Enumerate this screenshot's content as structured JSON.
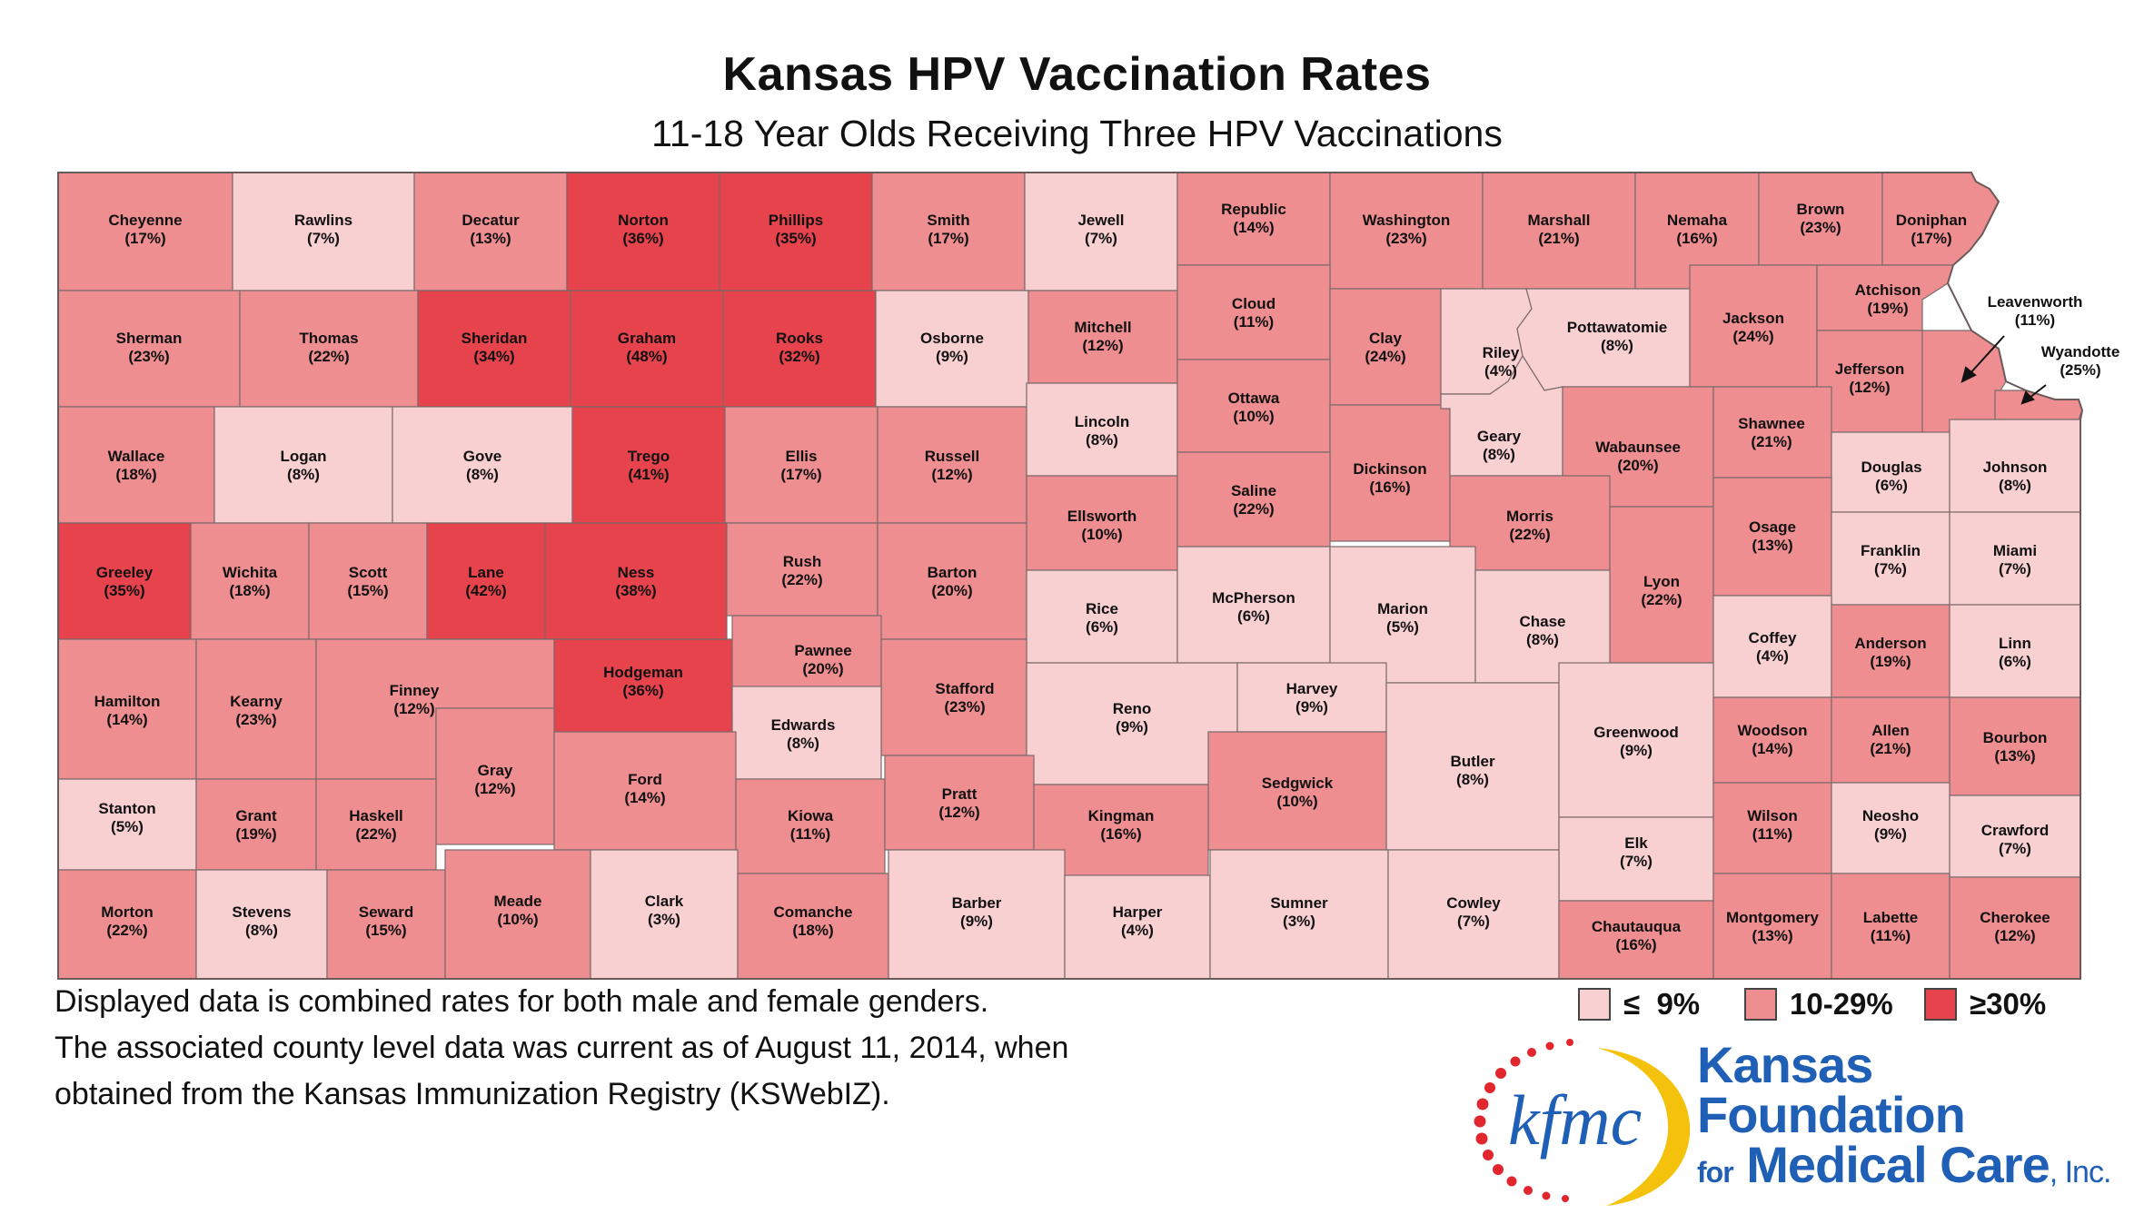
{
  "title": "Kansas HPV Vaccination Rates",
  "subtitle": "11-18 Year Olds Receiving Three HPV Vaccinations",
  "notes": [
    "Displayed data is combined rates for both male and female genders.",
    "The associated county level data was current as of August 11, 2014, when",
    "obtained from the Kansas Immunization Registry (KSWebIZ)."
  ],
  "legend": [
    {
      "label": "≤  9%",
      "color": "#f9d0d1"
    },
    {
      "label": "10-29%",
      "color": "#ef8e91"
    },
    {
      "label": "≥30%",
      "color": "#e6434c"
    }
  ],
  "logo": {
    "mark": "kfmc",
    "line1": "Kansas",
    "line2": "Foundation",
    "line3_for": "for",
    "line3_main": "Medical Care",
    "line3_inc": ", Inc."
  },
  "counties": [
    {
      "name": "Cheyenne",
      "rate": "(17%)"
    },
    {
      "name": "Rawlins",
      "rate": "(7%)"
    },
    {
      "name": "Decatur",
      "rate": "(13%)"
    },
    {
      "name": "Norton",
      "rate": "(36%)"
    },
    {
      "name": "Phillips",
      "rate": "(35%)"
    },
    {
      "name": "Smith",
      "rate": "(17%)"
    },
    {
      "name": "Jewell",
      "rate": "(7%)"
    },
    {
      "name": "Republic",
      "rate": "(14%)"
    },
    {
      "name": "Washington",
      "rate": "(23%)"
    },
    {
      "name": "Marshall",
      "rate": "(21%)"
    },
    {
      "name": "Nemaha",
      "rate": "(16%)"
    },
    {
      "name": "Brown",
      "rate": "(23%)"
    },
    {
      "name": "Doniphan",
      "rate": "(17%)"
    },
    {
      "name": "Sherman",
      "rate": "(23%)"
    },
    {
      "name": "Thomas",
      "rate": "(22%)"
    },
    {
      "name": "Sheridan",
      "rate": "(34%)"
    },
    {
      "name": "Graham",
      "rate": "(48%)"
    },
    {
      "name": "Rooks",
      "rate": "(32%)"
    },
    {
      "name": "Osborne",
      "rate": "(9%)"
    },
    {
      "name": "Mitchell",
      "rate": "(12%)"
    },
    {
      "name": "Cloud",
      "rate": "(11%)"
    },
    {
      "name": "Clay",
      "rate": "(24%)"
    },
    {
      "name": "Riley",
      "rate": "(4%)"
    },
    {
      "name": "Pottawatomie",
      "rate": "(8%)"
    },
    {
      "name": "Jackson",
      "rate": "(24%)"
    },
    {
      "name": "Atchison",
      "rate": "(19%)"
    },
    {
      "name": "Jefferson",
      "rate": "(12%)"
    },
    {
      "name": "Leavenworth",
      "rate": "(11%)"
    },
    {
      "name": "Wyandotte",
      "rate": "(25%)"
    },
    {
      "name": "Wallace",
      "rate": "(18%)"
    },
    {
      "name": "Logan",
      "rate": "(8%)"
    },
    {
      "name": "Gove",
      "rate": "(8%)"
    },
    {
      "name": "Trego",
      "rate": "(41%)"
    },
    {
      "name": "Ellis",
      "rate": "(17%)"
    },
    {
      "name": "Russell",
      "rate": "(12%)"
    },
    {
      "name": "Lincoln",
      "rate": "(8%)"
    },
    {
      "name": "Ottawa",
      "rate": "(10%)"
    },
    {
      "name": "Dickinson",
      "rate": "(16%)"
    },
    {
      "name": "Geary",
      "rate": "(8%)"
    },
    {
      "name": "Wabaunsee",
      "rate": "(20%)"
    },
    {
      "name": "Shawnee",
      "rate": "(21%)"
    },
    {
      "name": "Douglas",
      "rate": "(6%)"
    },
    {
      "name": "Johnson",
      "rate": "(8%)"
    },
    {
      "name": "Greeley",
      "rate": "(35%)"
    },
    {
      "name": "Wichita",
      "rate": "(18%)"
    },
    {
      "name": "Scott",
      "rate": "(15%)"
    },
    {
      "name": "Lane",
      "rate": "(42%)"
    },
    {
      "name": "Ness",
      "rate": "(38%)"
    },
    {
      "name": "Rush",
      "rate": "(22%)"
    },
    {
      "name": "Barton",
      "rate": "(20%)"
    },
    {
      "name": "Ellsworth",
      "rate": "(10%)"
    },
    {
      "name": "Saline",
      "rate": "(22%)"
    },
    {
      "name": "Morris",
      "rate": "(22%)"
    },
    {
      "name": "Lyon",
      "rate": "(22%)"
    },
    {
      "name": "Osage",
      "rate": "(13%)"
    },
    {
      "name": "Franklin",
      "rate": "(7%)"
    },
    {
      "name": "Miami",
      "rate": "(7%)"
    },
    {
      "name": "Rice",
      "rate": "(6%)"
    },
    {
      "name": "McPherson",
      "rate": "(6%)"
    },
    {
      "name": "Marion",
      "rate": "(5%)"
    },
    {
      "name": "Chase",
      "rate": "(8%)"
    },
    {
      "name": "Coffey",
      "rate": "(4%)"
    },
    {
      "name": "Anderson",
      "rate": "(19%)"
    },
    {
      "name": "Linn",
      "rate": "(6%)"
    },
    {
      "name": "Hamilton",
      "rate": "(14%)"
    },
    {
      "name": "Kearny",
      "rate": "(23%)"
    },
    {
      "name": "Finney",
      "rate": "(12%)"
    },
    {
      "name": "Hodgeman",
      "rate": "(36%)"
    },
    {
      "name": "Pawnee",
      "rate": "(20%)"
    },
    {
      "name": "Stafford",
      "rate": "(23%)"
    },
    {
      "name": "Edwards",
      "rate": "(8%)"
    },
    {
      "name": "Reno",
      "rate": "(9%)"
    },
    {
      "name": "Harvey",
      "rate": "(9%)"
    },
    {
      "name": "Butler",
      "rate": "(8%)"
    },
    {
      "name": "Greenwood",
      "rate": "(9%)"
    },
    {
      "name": "Woodson",
      "rate": "(14%)"
    },
    {
      "name": "Allen",
      "rate": "(21%)"
    },
    {
      "name": "Bourbon",
      "rate": "(13%)"
    },
    {
      "name": "Gray",
      "rate": "(12%)"
    },
    {
      "name": "Ford",
      "rate": "(14%)"
    },
    {
      "name": "Sedgwick",
      "rate": "(10%)"
    },
    {
      "name": "Stanton",
      "rate": "(5%)"
    },
    {
      "name": "Grant",
      "rate": "(19%)"
    },
    {
      "name": "Haskell",
      "rate": "(22%)"
    },
    {
      "name": "Kiowa",
      "rate": "(11%)"
    },
    {
      "name": "Pratt",
      "rate": "(12%)"
    },
    {
      "name": "Kingman",
      "rate": "(16%)"
    },
    {
      "name": "Elk",
      "rate": "(7%)"
    },
    {
      "name": "Wilson",
      "rate": "(11%)"
    },
    {
      "name": "Neosho",
      "rate": "(9%)"
    },
    {
      "name": "Crawford",
      "rate": "(7%)"
    },
    {
      "name": "Morton",
      "rate": "(22%)"
    },
    {
      "name": "Stevens",
      "rate": "(8%)"
    },
    {
      "name": "Seward",
      "rate": "(15%)"
    },
    {
      "name": "Meade",
      "rate": "(10%)"
    },
    {
      "name": "Clark",
      "rate": "(3%)"
    },
    {
      "name": "Comanche",
      "rate": "(18%)"
    },
    {
      "name": "Barber",
      "rate": "(9%)"
    },
    {
      "name": "Harper",
      "rate": "(4%)"
    },
    {
      "name": "Sumner",
      "rate": "(3%)"
    },
    {
      "name": "Cowley",
      "rate": "(7%)"
    },
    {
      "name": "Chautauqua",
      "rate": "(16%)"
    },
    {
      "name": "Montgomery",
      "rate": "(13%)"
    },
    {
      "name": "Labette",
      "rate": "(11%)"
    },
    {
      "name": "Cherokee",
      "rate": "(12%)"
    }
  ]
}
